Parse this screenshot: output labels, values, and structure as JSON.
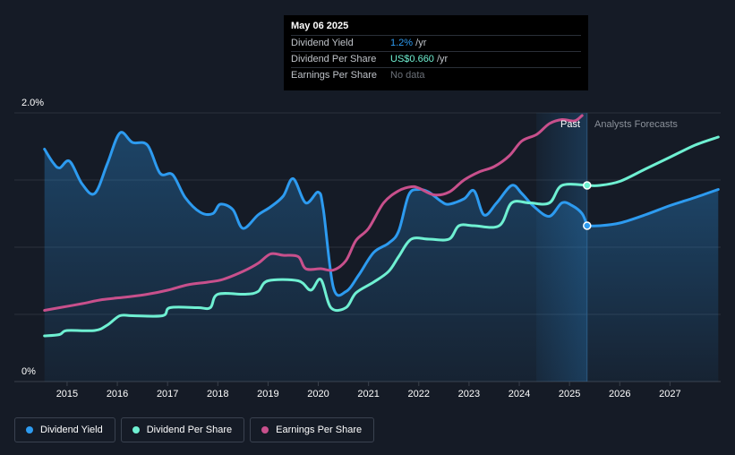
{
  "tooltip": {
    "date": "May 06 2025",
    "rows": [
      {
        "label": "Dividend Yield",
        "value": "1.2%",
        "unit": " /yr",
        "color": "#2d9bf0"
      },
      {
        "label": "Dividend Per Share",
        "value": "US$0.660",
        "unit": " /yr",
        "color": "#6ff0d2"
      },
      {
        "label": "Earnings Per Share",
        "value": "No data",
        "unit": "",
        "color": "#6b7078"
      }
    ]
  },
  "regions": {
    "past_label": "Past",
    "forecast_label": "Analysts Forecasts"
  },
  "legend": [
    {
      "label": "Dividend Yield",
      "color": "#2d9bf0"
    },
    {
      "label": "Dividend Per Share",
      "color": "#6ff0d2"
    },
    {
      "label": "Earnings Per Share",
      "color": "#c8508c"
    }
  ],
  "chart_data": {
    "type": "line",
    "x_ticks": [
      "2015",
      "2016",
      "2017",
      "2018",
      "2019",
      "2020",
      "2021",
      "2022",
      "2023",
      "2024",
      "2025",
      "2026",
      "2027"
    ],
    "y_tick_labels": [
      "0%",
      "2.0%"
    ],
    "ylim": [
      0,
      2.0
    ],
    "x_range": [
      2014.52,
      2027.96
    ],
    "past_end": 2025.35,
    "past_band_start": 2024.34,
    "series": [
      {
        "name": "Dividend Yield",
        "color": "#2d9bf0",
        "fill": true,
        "points": [
          [
            2014.55,
            1.73
          ],
          [
            2014.72,
            1.63
          ],
          [
            2014.85,
            1.59
          ],
          [
            2015.05,
            1.64
          ],
          [
            2015.3,
            1.47
          ],
          [
            2015.55,
            1.4
          ],
          [
            2015.8,
            1.62
          ],
          [
            2016.05,
            1.85
          ],
          [
            2016.3,
            1.78
          ],
          [
            2016.6,
            1.76
          ],
          [
            2016.85,
            1.55
          ],
          [
            2017.1,
            1.54
          ],
          [
            2017.35,
            1.37
          ],
          [
            2017.65,
            1.26
          ],
          [
            2017.9,
            1.25
          ],
          [
            2018.05,
            1.32
          ],
          [
            2018.3,
            1.28
          ],
          [
            2018.5,
            1.14
          ],
          [
            2018.8,
            1.24
          ],
          [
            2019.05,
            1.3
          ],
          [
            2019.3,
            1.38
          ],
          [
            2019.5,
            1.51
          ],
          [
            2019.75,
            1.33
          ],
          [
            2020.0,
            1.41
          ],
          [
            2020.1,
            1.28
          ],
          [
            2020.3,
            0.7
          ],
          [
            2020.55,
            0.67
          ],
          [
            2020.8,
            0.79
          ],
          [
            2021.1,
            0.96
          ],
          [
            2021.4,
            1.03
          ],
          [
            2021.6,
            1.12
          ],
          [
            2021.8,
            1.39
          ],
          [
            2022.0,
            1.43
          ],
          [
            2022.2,
            1.41
          ],
          [
            2022.45,
            1.34
          ],
          [
            2022.6,
            1.32
          ],
          [
            2022.9,
            1.36
          ],
          [
            2023.1,
            1.42
          ],
          [
            2023.3,
            1.24
          ],
          [
            2023.55,
            1.33
          ],
          [
            2023.85,
            1.46
          ],
          [
            2024.05,
            1.4
          ],
          [
            2024.3,
            1.3
          ],
          [
            2024.6,
            1.23
          ],
          [
            2024.85,
            1.33
          ],
          [
            2025.05,
            1.31
          ],
          [
            2025.25,
            1.25
          ],
          [
            2025.35,
            1.16
          ]
        ]
      },
      {
        "name": "Dividend Yield Forecast",
        "color": "#2d9bf0",
        "fill": true,
        "forecast": true,
        "points": [
          [
            2025.35,
            1.16
          ],
          [
            2025.6,
            1.16
          ],
          [
            2026.0,
            1.18
          ],
          [
            2026.5,
            1.24
          ],
          [
            2027.0,
            1.31
          ],
          [
            2027.5,
            1.37
          ],
          [
            2027.96,
            1.43
          ]
        ]
      },
      {
        "name": "Dividend Per Share",
        "color": "#6ff0d2",
        "fill": false,
        "points": [
          [
            2014.55,
            0.34
          ],
          [
            2014.85,
            0.35
          ],
          [
            2015.0,
            0.38
          ],
          [
            2015.55,
            0.38
          ],
          [
            2015.8,
            0.42
          ],
          [
            2016.05,
            0.49
          ],
          [
            2016.3,
            0.49
          ],
          [
            2016.9,
            0.49
          ],
          [
            2017.05,
            0.55
          ],
          [
            2017.6,
            0.55
          ],
          [
            2017.85,
            0.55
          ],
          [
            2018.0,
            0.65
          ],
          [
            2018.55,
            0.65
          ],
          [
            2018.8,
            0.67
          ],
          [
            2019.0,
            0.75
          ],
          [
            2019.6,
            0.75
          ],
          [
            2019.85,
            0.68
          ],
          [
            2020.05,
            0.76
          ],
          [
            2020.25,
            0.55
          ],
          [
            2020.55,
            0.55
          ],
          [
            2020.75,
            0.66
          ],
          [
            2021.1,
            0.74
          ],
          [
            2021.4,
            0.82
          ],
          [
            2021.6,
            0.93
          ],
          [
            2021.85,
            1.06
          ],
          [
            2022.2,
            1.06
          ],
          [
            2022.6,
            1.06
          ],
          [
            2022.8,
            1.16
          ],
          [
            2023.1,
            1.16
          ],
          [
            2023.6,
            1.16
          ],
          [
            2023.85,
            1.33
          ],
          [
            2024.2,
            1.33
          ],
          [
            2024.6,
            1.33
          ],
          [
            2024.85,
            1.46
          ],
          [
            2025.35,
            1.46
          ]
        ]
      },
      {
        "name": "Dividend Per Share Forecast",
        "color": "#6ff0d2",
        "fill": false,
        "forecast": true,
        "points": [
          [
            2025.35,
            1.46
          ],
          [
            2025.6,
            1.46
          ],
          [
            2026.0,
            1.49
          ],
          [
            2026.5,
            1.58
          ],
          [
            2027.0,
            1.67
          ],
          [
            2027.5,
            1.76
          ],
          [
            2027.96,
            1.82
          ]
        ]
      },
      {
        "name": "Earnings Per Share",
        "color": "#c8508c",
        "fill": false,
        "points": [
          [
            2014.55,
            0.53
          ],
          [
            2014.85,
            0.55
          ],
          [
            2015.3,
            0.58
          ],
          [
            2015.7,
            0.61
          ],
          [
            2016.2,
            0.63
          ],
          [
            2016.6,
            0.65
          ],
          [
            2017.0,
            0.68
          ],
          [
            2017.4,
            0.72
          ],
          [
            2017.8,
            0.74
          ],
          [
            2018.1,
            0.76
          ],
          [
            2018.5,
            0.82
          ],
          [
            2018.8,
            0.88
          ],
          [
            2019.05,
            0.95
          ],
          [
            2019.3,
            0.94
          ],
          [
            2019.6,
            0.93
          ],
          [
            2019.75,
            0.84
          ],
          [
            2020.05,
            0.84
          ],
          [
            2020.3,
            0.83
          ],
          [
            2020.55,
            0.9
          ],
          [
            2020.75,
            1.05
          ],
          [
            2021.0,
            1.14
          ],
          [
            2021.3,
            1.33
          ],
          [
            2021.6,
            1.42
          ],
          [
            2021.85,
            1.45
          ],
          [
            2022.0,
            1.44
          ],
          [
            2022.3,
            1.39
          ],
          [
            2022.6,
            1.41
          ],
          [
            2022.9,
            1.5
          ],
          [
            2023.2,
            1.56
          ],
          [
            2023.5,
            1.6
          ],
          [
            2023.8,
            1.68
          ],
          [
            2024.05,
            1.79
          ],
          [
            2024.35,
            1.84
          ],
          [
            2024.6,
            1.92
          ],
          [
            2024.85,
            1.95
          ],
          [
            2025.1,
            1.94
          ],
          [
            2025.25,
            1.98
          ]
        ]
      }
    ],
    "markers": [
      {
        "x": 2025.35,
        "y": 1.46,
        "color": "#6ff0d2"
      },
      {
        "x": 2025.35,
        "y": 1.16,
        "color": "#2d9bf0"
      }
    ]
  }
}
